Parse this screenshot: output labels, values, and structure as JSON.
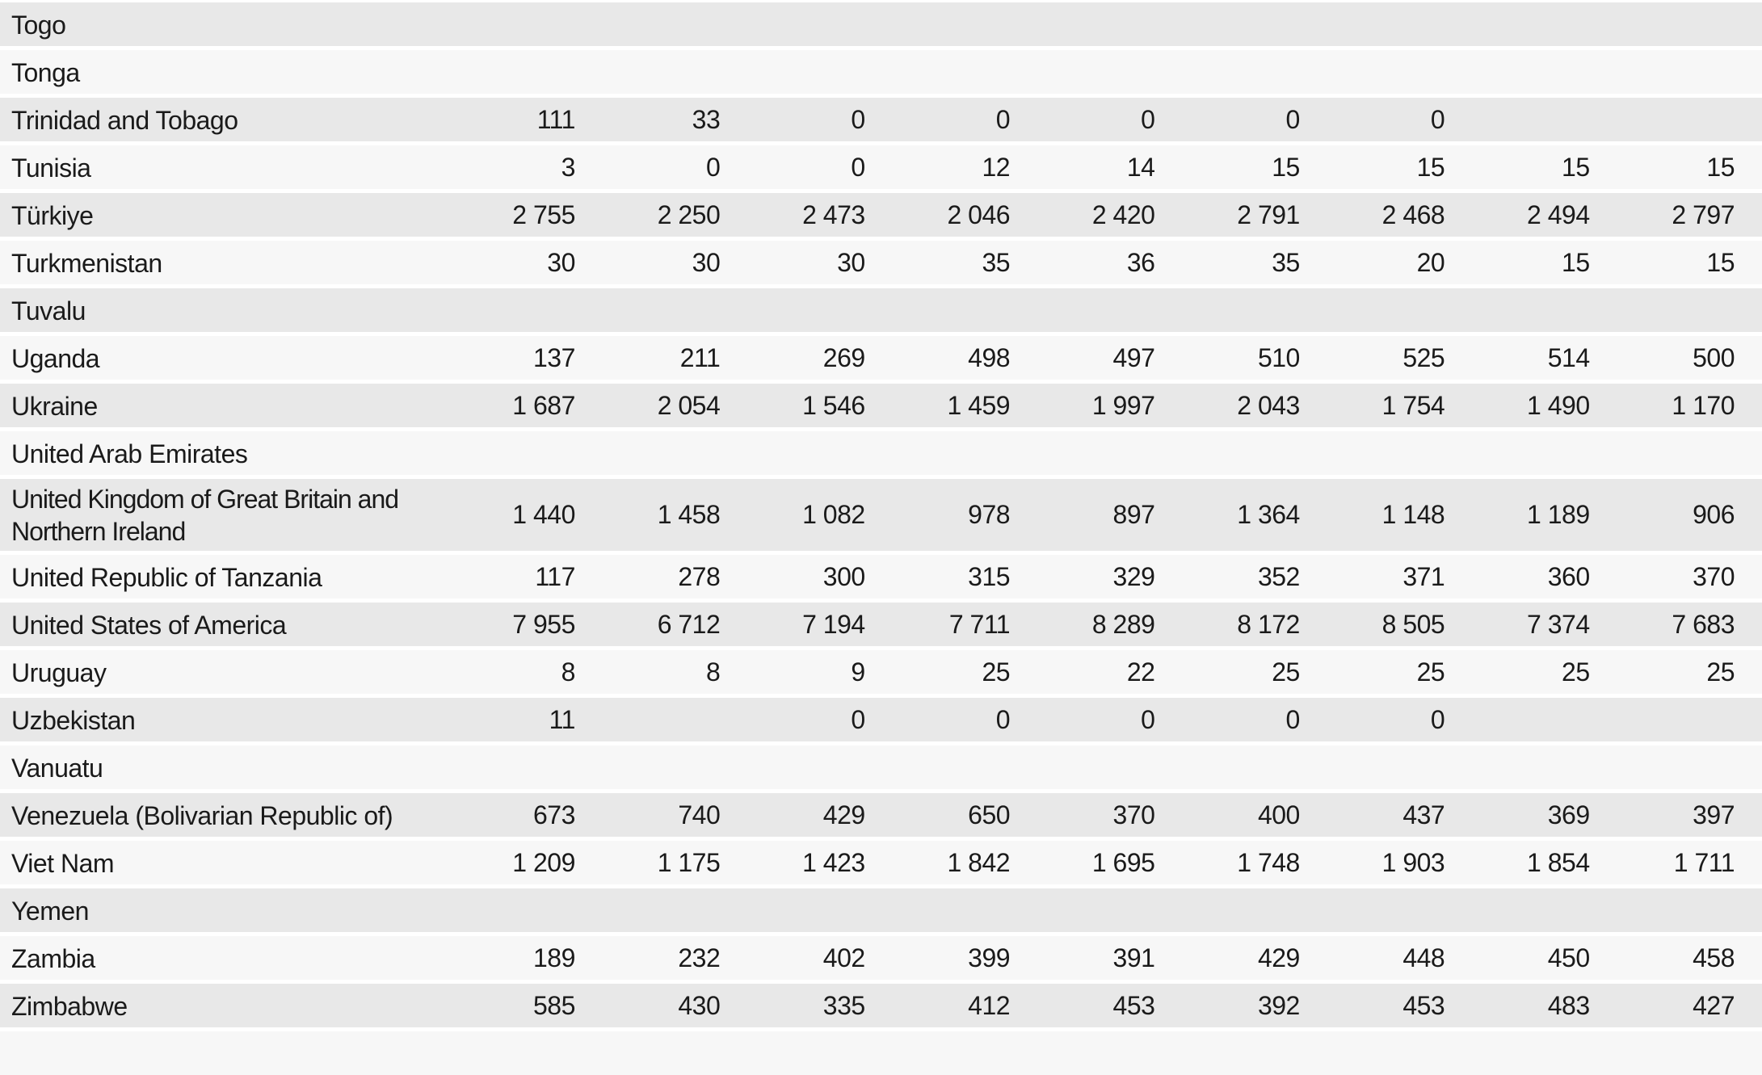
{
  "table": {
    "column_headers_visible": false,
    "value_columns_count": 9,
    "rows": [
      {
        "country": "Togo",
        "values": [
          "",
          "",
          "",
          "",
          "",
          "",
          "",
          "",
          ""
        ]
      },
      {
        "country": "Tonga",
        "values": [
          "",
          "",
          "",
          "",
          "",
          "",
          "",
          "",
          ""
        ]
      },
      {
        "country": "Trinidad and Tobago",
        "values": [
          "111",
          "33",
          "0",
          "0",
          "0",
          "0",
          "0",
          "",
          ""
        ]
      },
      {
        "country": "Tunisia",
        "values": [
          "3",
          "0",
          "0",
          "12",
          "14",
          "15",
          "15",
          "15",
          "15"
        ]
      },
      {
        "country": "Türkiye",
        "values": [
          "2 755",
          "2 250",
          "2 473",
          "2 046",
          "2 420",
          "2 791",
          "2 468",
          "2 494",
          "2 797"
        ]
      },
      {
        "country": "Turkmenistan",
        "values": [
          "30",
          "30",
          "30",
          "35",
          "36",
          "35",
          "20",
          "15",
          "15"
        ]
      },
      {
        "country": "Tuvalu",
        "values": [
          "",
          "",
          "",
          "",
          "",
          "",
          "",
          "",
          ""
        ]
      },
      {
        "country": "Uganda",
        "values": [
          "137",
          "211",
          "269",
          "498",
          "497",
          "510",
          "525",
          "514",
          "500"
        ]
      },
      {
        "country": "Ukraine",
        "values": [
          "1 687",
          "2 054",
          "1 546",
          "1 459",
          "1 997",
          "2 043",
          "1 754",
          "1 490",
          "1 170"
        ]
      },
      {
        "country": "United Arab Emirates",
        "values": [
          "",
          "",
          "",
          "",
          "",
          "",
          "",
          "",
          ""
        ]
      },
      {
        "country": "United Kingdom of Great Britain and Northern Ireland",
        "values": [
          "1 440",
          "1 458",
          "1 082",
          "978",
          "897",
          "1 364",
          "1 148",
          "1 189",
          "906"
        ]
      },
      {
        "country": "United Republic of Tanzania",
        "values": [
          "117",
          "278",
          "300",
          "315",
          "329",
          "352",
          "371",
          "360",
          "370"
        ]
      },
      {
        "country": "United States of America",
        "values": [
          "7 955",
          "6 712",
          "7 194",
          "7 711",
          "8 289",
          "8 172",
          "8 505",
          "7 374",
          "7 683"
        ]
      },
      {
        "country": "Uruguay",
        "values": [
          "8",
          "8",
          "9",
          "25",
          "22",
          "25",
          "25",
          "25",
          "25"
        ]
      },
      {
        "country": "Uzbekistan",
        "values": [
          "11",
          "",
          "0",
          "0",
          "0",
          "0",
          "0",
          "",
          ""
        ]
      },
      {
        "country": "Vanuatu",
        "values": [
          "",
          "",
          "",
          "",
          "",
          "",
          "",
          "",
          ""
        ]
      },
      {
        "country": "Venezuela (Bolivarian Republic of)",
        "values": [
          "673",
          "740",
          "429",
          "650",
          "370",
          "400",
          "437",
          "369",
          "397"
        ]
      },
      {
        "country": "Viet Nam",
        "values": [
          "1 209",
          "1 175",
          "1 423",
          "1 842",
          "1 695",
          "1 748",
          "1 903",
          "1 854",
          "1 711"
        ]
      },
      {
        "country": "Yemen",
        "values": [
          "",
          "",
          "",
          "",
          "",
          "",
          "",
          "",
          ""
        ]
      },
      {
        "country": "Zambia",
        "values": [
          "189",
          "232",
          "402",
          "399",
          "391",
          "429",
          "448",
          "450",
          "458"
        ]
      },
      {
        "country": "Zimbabwe",
        "values": [
          "585",
          "430",
          "335",
          "412",
          "453",
          "392",
          "453",
          "483",
          "427"
        ]
      }
    ]
  },
  "chart_data": {
    "type": "table",
    "title": "",
    "notes": "Scrolled view of a country statistics table, countries Togo through Zimbabwe; 9 unlabeled numeric columns (headers outside visible area); blank cells indicate no data",
    "categories": [
      "Togo",
      "Tonga",
      "Trinidad and Tobago",
      "Tunisia",
      "Türkiye",
      "Turkmenistan",
      "Tuvalu",
      "Uganda",
      "Ukraine",
      "United Arab Emirates",
      "United Kingdom of Great Britain and Northern Ireland",
      "United Republic of Tanzania",
      "United States of America",
      "Uruguay",
      "Uzbekistan",
      "Vanuatu",
      "Venezuela (Bolivarian Republic of)",
      "Viet Nam",
      "Yemen",
      "Zambia",
      "Zimbabwe"
    ],
    "rows": [
      {
        "country": "Togo",
        "values": [
          null,
          null,
          null,
          null,
          null,
          null,
          null,
          null,
          null
        ]
      },
      {
        "country": "Tonga",
        "values": [
          null,
          null,
          null,
          null,
          null,
          null,
          null,
          null,
          null
        ]
      },
      {
        "country": "Trinidad and Tobago",
        "values": [
          111,
          33,
          0,
          0,
          0,
          0,
          0,
          null,
          null
        ]
      },
      {
        "country": "Tunisia",
        "values": [
          3,
          0,
          0,
          12,
          14,
          15,
          15,
          15,
          15
        ]
      },
      {
        "country": "Türkiye",
        "values": [
          2755,
          2250,
          2473,
          2046,
          2420,
          2791,
          2468,
          2494,
          2797
        ]
      },
      {
        "country": "Turkmenistan",
        "values": [
          30,
          30,
          30,
          35,
          36,
          35,
          20,
          15,
          15
        ]
      },
      {
        "country": "Tuvalu",
        "values": [
          null,
          null,
          null,
          null,
          null,
          null,
          null,
          null,
          null
        ]
      },
      {
        "country": "Uganda",
        "values": [
          137,
          211,
          269,
          498,
          497,
          510,
          525,
          514,
          500
        ]
      },
      {
        "country": "Ukraine",
        "values": [
          1687,
          2054,
          1546,
          1459,
          1997,
          2043,
          1754,
          1490,
          1170
        ]
      },
      {
        "country": "United Arab Emirates",
        "values": [
          null,
          null,
          null,
          null,
          null,
          null,
          null,
          null,
          null
        ]
      },
      {
        "country": "United Kingdom of Great Britain and Northern Ireland",
        "values": [
          1440,
          1458,
          1082,
          978,
          897,
          1364,
          1148,
          1189,
          906
        ]
      },
      {
        "country": "United Republic of Tanzania",
        "values": [
          117,
          278,
          300,
          315,
          329,
          352,
          371,
          360,
          370
        ]
      },
      {
        "country": "United States of America",
        "values": [
          7955,
          6712,
          7194,
          7711,
          8289,
          8172,
          8505,
          7374,
          7683
        ]
      },
      {
        "country": "Uruguay",
        "values": [
          8,
          8,
          9,
          25,
          22,
          25,
          25,
          25,
          25
        ]
      },
      {
        "country": "Uzbekistan",
        "values": [
          11,
          null,
          0,
          0,
          0,
          0,
          0,
          null,
          null
        ]
      },
      {
        "country": "Vanuatu",
        "values": [
          null,
          null,
          null,
          null,
          null,
          null,
          null,
          null,
          null
        ]
      },
      {
        "country": "Venezuela (Bolivarian Republic of)",
        "values": [
          673,
          740,
          429,
          650,
          370,
          400,
          437,
          369,
          397
        ]
      },
      {
        "country": "Viet Nam",
        "values": [
          1209,
          1175,
          1423,
          1842,
          1695,
          1748,
          1903,
          1854,
          1711
        ]
      },
      {
        "country": "Yemen",
        "values": [
          null,
          null,
          null,
          null,
          null,
          null,
          null,
          null,
          null
        ]
      },
      {
        "country": "Zambia",
        "values": [
          189,
          232,
          402,
          399,
          391,
          429,
          448,
          450,
          458
        ]
      },
      {
        "country": "Zimbabwe",
        "values": [
          585,
          430,
          335,
          412,
          453,
          392,
          453,
          483,
          427
        ]
      }
    ]
  },
  "colors": {
    "row_shade_dark": "#e8e8e8",
    "row_shade_light": "#f7f7f7",
    "text": "#1a1a1a",
    "background": "#ffffff"
  }
}
